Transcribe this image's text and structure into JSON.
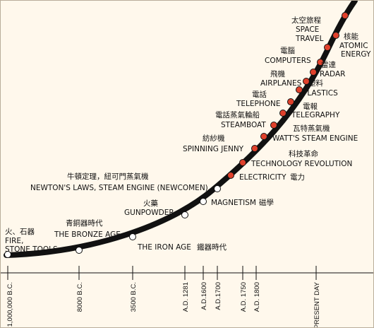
{
  "diagram": {
    "timeline_ticks": [
      "1,000,000 B.C.",
      "8000 B.C.",
      "3500 B.C.",
      "A.D. 1281",
      "A.D.1600",
      "A.D.1700",
      "A.D. 1750",
      "A.D. 1800",
      "PRESENT DAY"
    ],
    "events": [
      {
        "zh": "火、石器",
        "en": [
          "FIRE,",
          "STONE TOOLS"
        ]
      },
      {
        "zh": "青銅器時代",
        "en": [
          "THE BRONZE AGE"
        ]
      },
      {
        "zh": "鐵器時代",
        "en": [
          "THE IRON AGE"
        ]
      },
      {
        "zh": "火藥",
        "en": [
          "GUNPOWDER"
        ]
      },
      {
        "zh": "牛頓定理，紐可門蒸氣機",
        "en": [
          "NEWTON'S LAWS, STEAM ENGINE (NEWCOMEN)"
        ]
      },
      {
        "zh": "磁學",
        "en": [
          "MAGNETISM"
        ]
      },
      {
        "zh": "電力",
        "en": [
          "ELECTRICITY"
        ]
      },
      {
        "zh": "科技革命",
        "en": [
          "TECHNOLOGY REVOLUTION"
        ]
      },
      {
        "zh": "紡紗機",
        "en": [
          "SPINNING JENNY"
        ]
      },
      {
        "zh": "瓦特蒸氣機",
        "en": [
          "WATT'S STEAM ENGINE"
        ]
      },
      {
        "zh": "電話蒸氣輪船",
        "en": [
          "STEAMBOAT"
        ]
      },
      {
        "zh": "電報",
        "en": [
          "TELEGRAPHY"
        ]
      },
      {
        "zh": "電話",
        "en": [
          "TELEPHONE"
        ]
      },
      {
        "zh": "塑料",
        "en": [
          "PLASTICS"
        ]
      },
      {
        "zh": "飛機",
        "en": [
          "AIRPLANES"
        ]
      },
      {
        "zh": "雷達",
        "en": [
          "RADAR"
        ]
      },
      {
        "zh": "電腦",
        "en": [
          "COMPUTERS"
        ]
      },
      {
        "zh": "核能",
        "en": [
          "ATOMIC",
          "ENERGY"
        ]
      },
      {
        "zh": "太空旅程",
        "en": [
          "SPACE",
          "TRAVEL"
        ]
      }
    ],
    "colors": {
      "background": "#fff8ec",
      "curve": "#111111",
      "early_marker": "#ffffff",
      "modern_marker": "#e0412c"
    }
  }
}
